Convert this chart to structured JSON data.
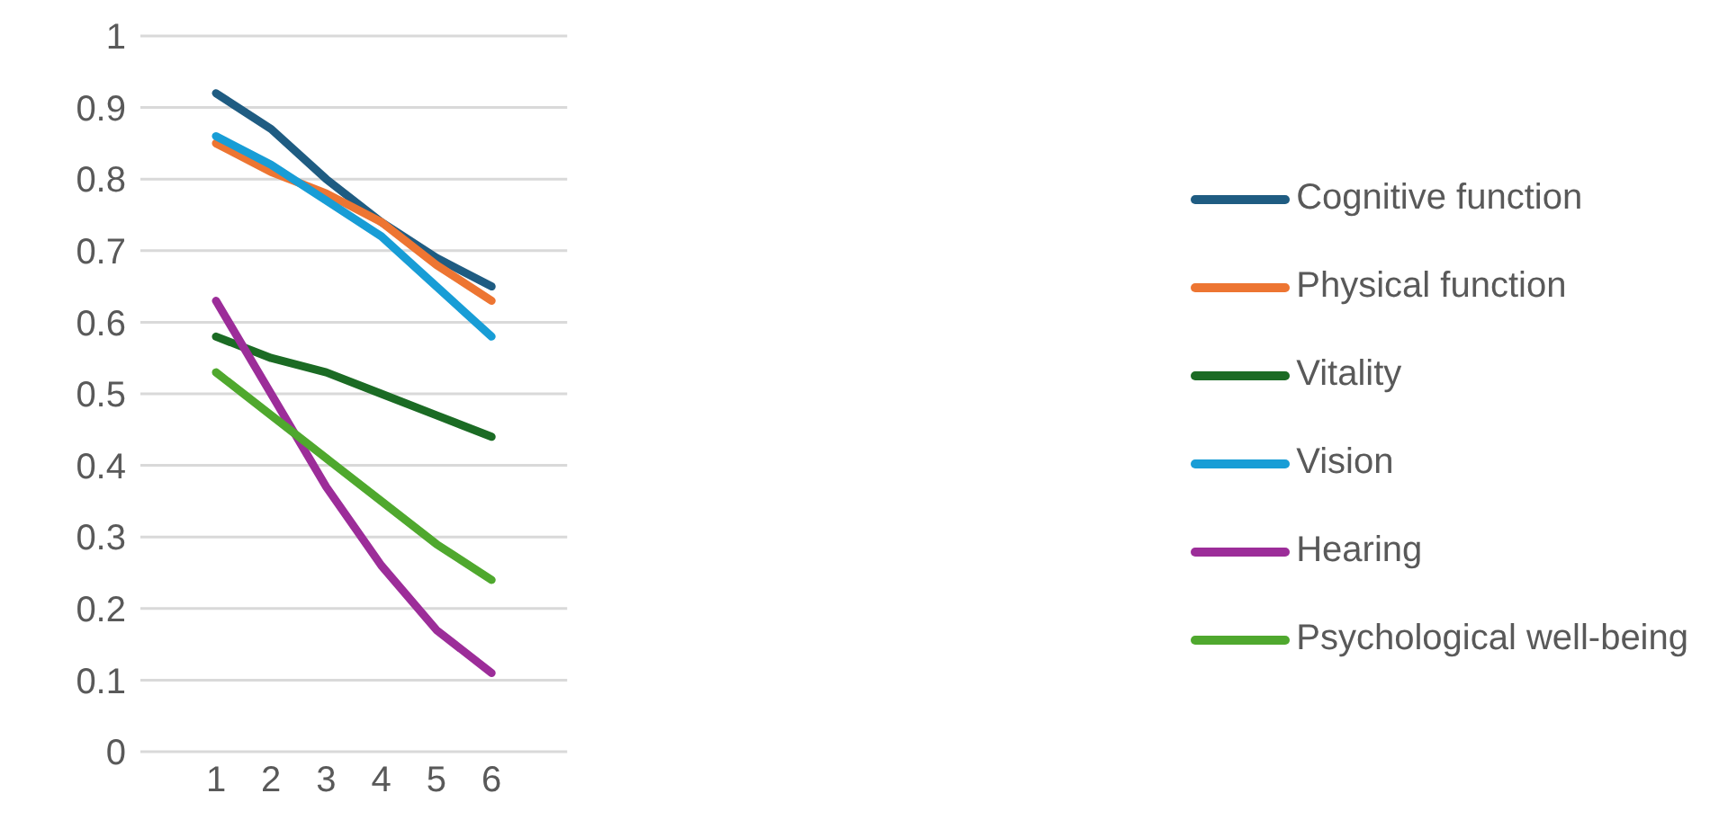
{
  "chart_data": {
    "type": "line",
    "categories": [
      "1",
      "2",
      "3",
      "4",
      "5",
      "6"
    ],
    "series": [
      {
        "name": "Cognitive function",
        "color": "#1f5c82",
        "values": [
          0.92,
          0.87,
          0.8,
          0.74,
          0.69,
          0.65
        ]
      },
      {
        "name": "Physical function",
        "color": "#ed7532",
        "values": [
          0.85,
          0.81,
          0.78,
          0.74,
          0.68,
          0.63
        ]
      },
      {
        "name": "Vitality",
        "color": "#1b6b24",
        "values": [
          0.58,
          0.55,
          0.53,
          0.5,
          0.47,
          0.44
        ]
      },
      {
        "name": "Vision",
        "color": "#189dd6",
        "values": [
          0.86,
          0.82,
          0.77,
          0.72,
          0.65,
          0.58
        ]
      },
      {
        "name": "Hearing",
        "color": "#9c2d99",
        "values": [
          0.63,
          0.5,
          0.37,
          0.26,
          0.17,
          0.11
        ]
      },
      {
        "name": "Psychological well-being",
        "color": "#4fa82e",
        "values": [
          0.53,
          0.47,
          0.41,
          0.35,
          0.29,
          0.24
        ]
      }
    ],
    "ylim": [
      0,
      1
    ],
    "yticks": [
      0,
      0.1,
      0.2,
      0.3,
      0.4,
      0.5,
      0.6,
      0.7,
      0.8,
      0.9,
      1
    ],
    "grid": "y",
    "legend": "right",
    "marker": "none",
    "line_style": "solid"
  }
}
